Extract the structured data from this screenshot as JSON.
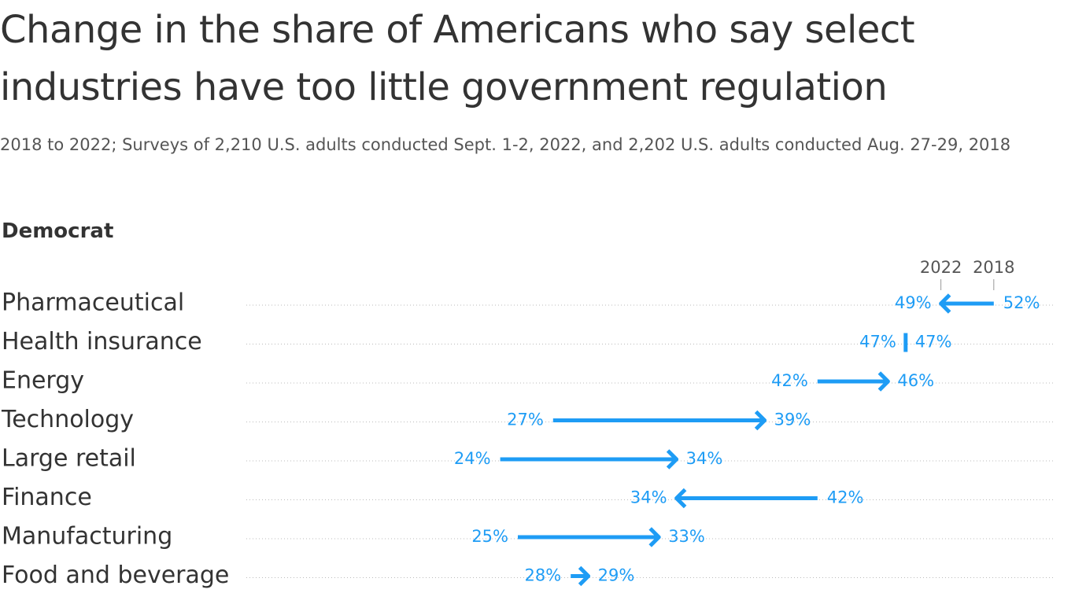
{
  "chart_data": {
    "type": "arrow",
    "title": "Change in the share of Americans who say select industries have too little government regulation",
    "subtitle": "2018 to 2022; Surveys of 2,210 U.S. adults conducted Sept. 1-2, 2022, and 2,202 U.S. adults conducted Aug. 27-29, 2018",
    "panel_title": "Democrat",
    "categories": [
      "Pharmaceutical",
      "Health insurance",
      "Energy",
      "Technology",
      "Large retail",
      "Finance",
      "Manufacturing",
      "Food and beverage"
    ],
    "series": [
      {
        "name": "2018",
        "color": "#1e9cf5",
        "values": [
          52,
          47,
          42,
          27,
          24,
          42,
          25,
          28
        ],
        "value_labels": [
          "52%",
          "47%",
          "42%",
          "27%",
          "24%",
          "42%",
          "25%",
          "28%"
        ]
      },
      {
        "name": "2022",
        "color": "#1e9cf5",
        "values": [
          49,
          47,
          46,
          39,
          34,
          34,
          33,
          29
        ],
        "value_labels": [
          "49%",
          "47%",
          "46%",
          "39%",
          "34%",
          "34%",
          "33%",
          "29%"
        ]
      }
    ]
  }
}
